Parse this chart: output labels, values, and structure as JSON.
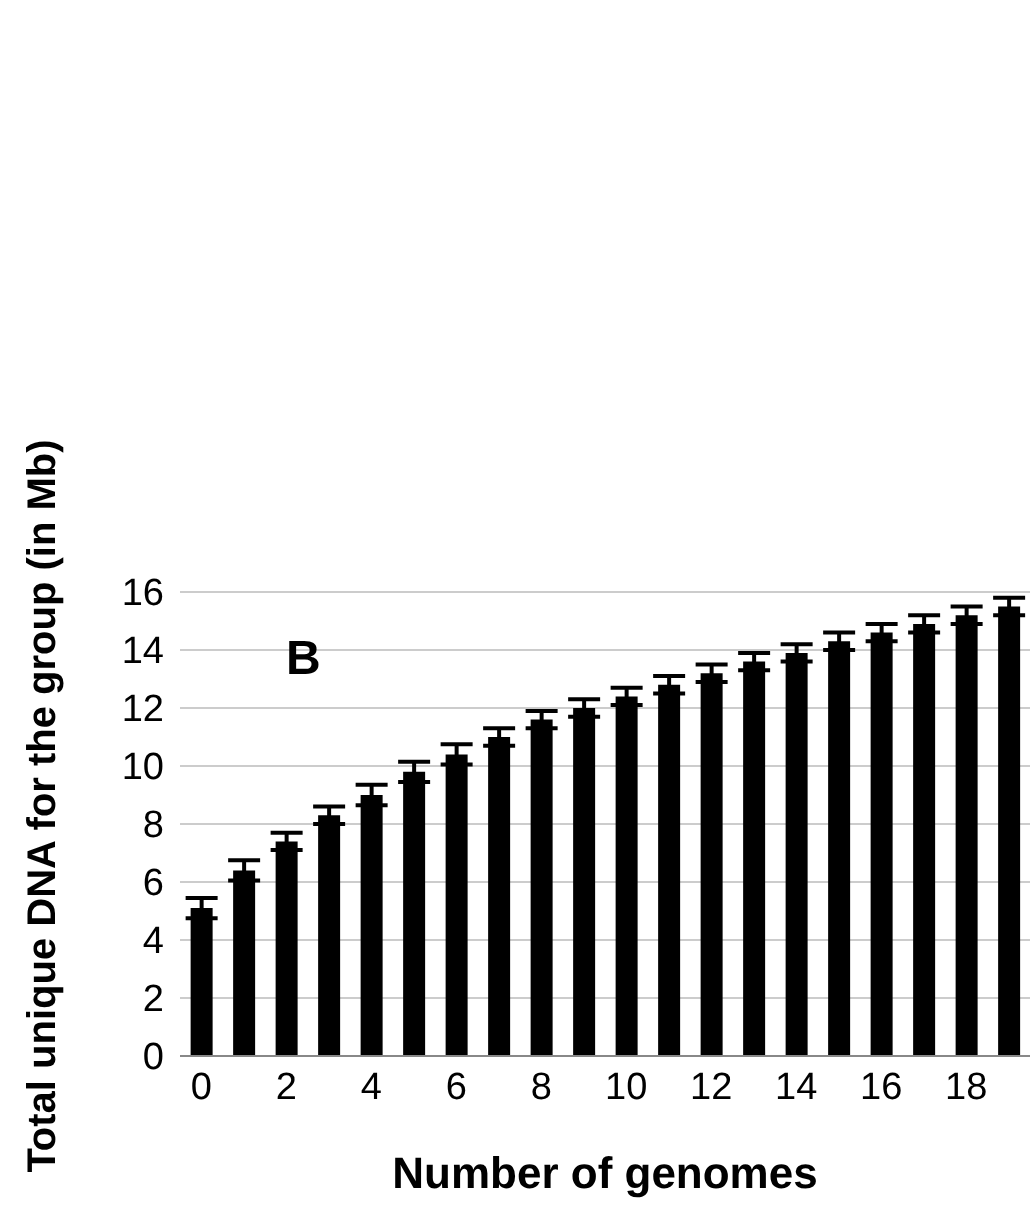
{
  "chart_data": {
    "type": "bar",
    "xlabel": "Number of genomes",
    "ylabel": "Total unique DNA for the group (in Mb)",
    "annotations": [
      "B"
    ],
    "categories": [
      "0",
      null,
      "2",
      null,
      "4",
      null,
      "6",
      null,
      "8",
      null,
      "10",
      null,
      "12",
      null,
      "14",
      null,
      "16",
      null,
      "18",
      null
    ],
    "values": [
      5.1,
      6.4,
      7.4,
      8.3,
      9.0,
      9.8,
      10.4,
      11.0,
      11.6,
      12.0,
      12.4,
      12.8,
      13.2,
      13.6,
      13.9,
      14.3,
      14.6,
      14.9,
      15.2,
      15.5
    ],
    "errors": [
      0.35,
      0.35,
      0.3,
      0.3,
      0.35,
      0.35,
      0.35,
      0.3,
      0.3,
      0.3,
      0.3,
      0.3,
      0.3,
      0.3,
      0.3,
      0.3,
      0.3,
      0.3,
      0.3,
      0.3
    ],
    "color": "#000000",
    "ylim": [
      0,
      16
    ],
    "yticks": [
      0,
      2,
      4,
      6,
      8,
      10,
      12,
      14,
      16
    ],
    "grid": "y"
  }
}
